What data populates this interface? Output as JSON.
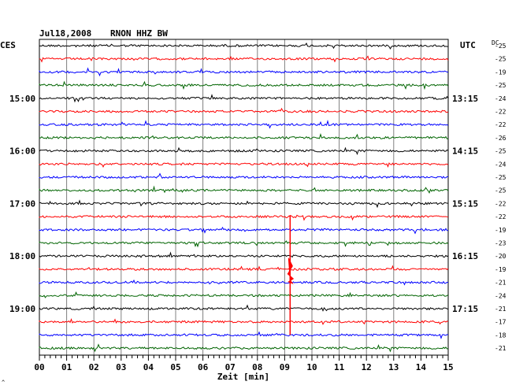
{
  "header": {
    "date": "Jul18,2008",
    "station": "RNON HHZ BW",
    "left_tz": "CES",
    "right_tz": "UTC",
    "dc_label": "DC"
  },
  "colors": {
    "trace_cycle": [
      "#000000",
      "#ff0000",
      "#0000ff",
      "#006400"
    ],
    "grid": "#808080"
  },
  "chart_data": {
    "type": "line",
    "title": "Jul18,2008   RNON HHZ BW",
    "xlabel": "Zeit [min]",
    "xlim": [
      0,
      15
    ],
    "x_ticks": [
      "00",
      "01",
      "02",
      "03",
      "04",
      "05",
      "06",
      "07",
      "08",
      "09",
      "10",
      "11",
      "12",
      "13",
      "14",
      "15"
    ],
    "grid": "vertical",
    "trace_count": 24,
    "minutes_per_trace": 15,
    "left_hour_labels": [
      {
        "trace": 4,
        "label": "15:00"
      },
      {
        "trace": 8,
        "label": "16:00"
      },
      {
        "trace": 12,
        "label": "17:00"
      },
      {
        "trace": 16,
        "label": "18:00"
      },
      {
        "trace": 20,
        "label": "19:00"
      }
    ],
    "right_hour_labels": [
      {
        "trace": 4,
        "label": "13:15"
      },
      {
        "trace": 8,
        "label": "14:15"
      },
      {
        "trace": 12,
        "label": "15:15"
      },
      {
        "trace": 16,
        "label": "16:15"
      },
      {
        "trace": 20,
        "label": "17:15"
      }
    ],
    "dc_offsets": [
      -25,
      -25,
      -19,
      -25,
      -24,
      -22,
      -22,
      -26,
      -25,
      -24,
      -25,
      -25,
      -22,
      -22,
      -19,
      -23,
      -20,
      -19,
      -21,
      -24,
      -21,
      -17,
      -18,
      -21
    ],
    "event": {
      "trace_start": 13,
      "trace_end": 22,
      "minute": 9.2,
      "peak_trace": 17
    }
  }
}
